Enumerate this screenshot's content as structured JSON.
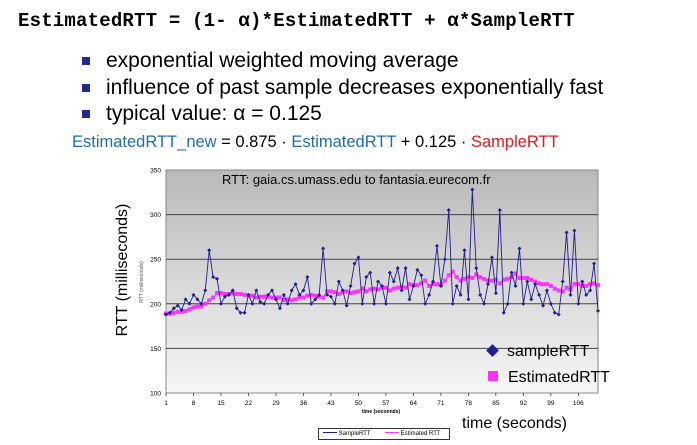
{
  "header": {
    "formula": "EstimatedRTT = (1- α)*EstimatedRTT + α*SampleRTT"
  },
  "bullets": [
    "exponential weighted moving average",
    "influence of past sample decreases exponentially fast",
    "typical value: α  = 0.125"
  ],
  "equation": {
    "part1": "EstimatedRTT_new",
    "part2": " = 0.875 · ",
    "part3": "EstimatedRTT",
    "part4": " +  0.125 · ",
    "part5": "SampleRTT"
  },
  "colors": {
    "blue_text": "#1f6db0",
    "red_text": "#e3171d",
    "sample": "#1f1f8f",
    "estimated": "#ff33ff",
    "plot_bg": "#c0c0c0"
  },
  "chart_data": {
    "type": "line",
    "title": "RTT: gaia.cs.umass.edu to fantasia.eurecom.fr",
    "xlabel": "time (seconds)",
    "ylabel": "RTT (milliseconds)",
    "xlabel_small": "time (seconnds)",
    "ylabel_small": "RTT (milliseconds)",
    "xlim": [
      1,
      111
    ],
    "ylim": [
      100,
      350
    ],
    "xticks": [
      1,
      8,
      15,
      22,
      29,
      36,
      43,
      50,
      57,
      64,
      71,
      78,
      85,
      92,
      99,
      106
    ],
    "yticks": [
      100,
      150,
      200,
      250,
      300,
      350
    ],
    "grid": "horizontal",
    "legend": [
      "sampleRTT",
      "EstimatedRTT"
    ],
    "legend_small": [
      "SampleRTT",
      "Estimated RTT"
    ],
    "series": [
      {
        "name": "SampleRTT",
        "marker": "diamond",
        "values": [
          188,
          190,
          195,
          198,
          193,
          205,
          200,
          210,
          205,
          200,
          215,
          260,
          230,
          228,
          200,
          208,
          210,
          215,
          195,
          190,
          190,
          210,
          200,
          215,
          202,
          200,
          210,
          215,
          205,
          195,
          210,
          200,
          215,
          222,
          210,
          215,
          230,
          200,
          205,
          210,
          262,
          210,
          208,
          200,
          225,
          215,
          198,
          220,
          245,
          252,
          200,
          230,
          235,
          200,
          225,
          220,
          200,
          235,
          225,
          240,
          215,
          240,
          205,
          220,
          238,
          232,
          200,
          210,
          225,
          265,
          220,
          250,
          305,
          200,
          220,
          210,
          260,
          205,
          328,
          240,
          210,
          200,
          222,
          252,
          212,
          305,
          190,
          200,
          235,
          220,
          262,
          200,
          225,
          205,
          222,
          210,
          198,
          215,
          200,
          190,
          188,
          225,
          280,
          210,
          282,
          200,
          225,
          210,
          215,
          245,
          192
        ]
      },
      {
        "name": "EstimatedRTT",
        "marker": "square",
        "values": [
          189,
          189,
          190,
          191,
          191,
          192,
          194,
          196,
          197,
          197,
          200,
          204,
          207,
          212,
          212,
          211,
          211,
          212,
          211,
          211,
          210,
          209,
          209,
          207,
          208,
          208,
          208,
          207,
          207,
          207,
          204,
          205,
          204,
          205,
          207,
          207,
          209,
          210,
          209,
          208,
          207,
          214,
          214,
          213,
          211,
          213,
          214,
          212,
          213,
          214,
          217,
          214,
          216,
          217,
          216,
          218,
          218,
          215,
          217,
          218,
          219,
          218,
          222,
          221,
          221,
          223,
          226,
          220,
          222,
          222,
          221,
          226,
          232,
          236,
          230,
          226,
          228,
          230,
          229,
          233,
          230,
          228,
          226,
          226,
          227,
          223,
          227,
          228,
          230,
          234,
          229,
          229,
          229,
          227,
          225,
          223,
          222,
          222,
          220,
          217,
          215,
          214,
          218,
          216,
          222,
          222,
          220,
          220,
          222,
          223,
          221
        ]
      }
    ]
  }
}
